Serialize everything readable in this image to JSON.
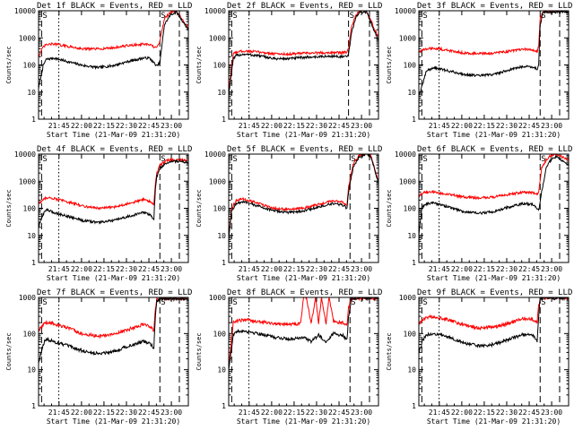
{
  "figure": {
    "ylabel": "Counts/sec",
    "xlabel": "Start Time (21-Mar-09 21:31:20)",
    "y_ticks": [
      {
        "value": 1,
        "label": "1"
      },
      {
        "value": 10,
        "label": "10"
      },
      {
        "value": 100,
        "label": "100"
      },
      {
        "value": 1000,
        "label": "1000"
      },
      {
        "value": 10000,
        "label": "10000"
      }
    ],
    "x_ticks": [
      {
        "minutes": 13.67,
        "label": "21:45"
      },
      {
        "minutes": 28.67,
        "label": "22:00"
      },
      {
        "minutes": 43.67,
        "label": "22:15"
      },
      {
        "minutes": 58.67,
        "label": "22:30"
      },
      {
        "minutes": 73.67,
        "label": "22:45"
      },
      {
        "minutes": 88.67,
        "label": "23:00"
      }
    ],
    "x_range_minutes": [
      0,
      100
    ],
    "y_range": [
      1,
      10000
    ],
    "colors": {
      "events": "#000000",
      "lld": "#ff0000",
      "axis": "#000000"
    }
  },
  "chart_data": [
    {
      "type": "line",
      "detector": "1f",
      "title": "Det 1f BLACK = Events, RED = LLD",
      "title_display": "Det 1f  BLACK = Events, RED = LLD",
      "ylabel": "Counts/sec",
      "xlabel": "Start Time (21-Mar-09 21:31:20)",
      "yscale": "log",
      "ylim": [
        1,
        10000
      ],
      "t_start_minutes": 0,
      "t_end_minutes": 100,
      "dashed_markers_minutes": [
        2,
        81,
        94
      ],
      "dotted_marker_minutes": 13.5,
      "series": [
        {
          "name": "Events",
          "color": "#000000",
          "x": [
            0,
            3,
            5,
            10,
            20,
            30,
            40,
            50,
            60,
            70,
            74,
            77,
            79,
            81,
            84,
            88,
            92,
            100
          ],
          "y": [
            14,
            90,
            160,
            180,
            130,
            95,
            80,
            95,
            135,
            180,
            180,
            120,
            90,
            120,
            3000,
            7000,
            9000,
            2000
          ]
        },
        {
          "name": "LLD",
          "color": "#ff0000",
          "x": [
            0,
            3,
            5,
            10,
            20,
            30,
            40,
            50,
            60,
            70,
            74,
            77,
            79,
            81,
            84,
            88,
            92,
            100
          ],
          "y": [
            200,
            450,
            550,
            600,
            480,
            390,
            390,
            430,
            520,
            580,
            560,
            460,
            420,
            800,
            5000,
            9000,
            10000,
            2200
          ]
        }
      ]
    },
    {
      "type": "line",
      "detector": "2f",
      "title": "Det 2f BLACK = Events, RED = LLD",
      "title_display": "Det 2f  BLACK = Events, RED = LLD",
      "ylabel": "Counts/sec",
      "xlabel": "Start Time (21-Mar-09 21:31:20)",
      "yscale": "log",
      "ylim": [
        1,
        10000
      ],
      "t_start_minutes": 0,
      "t_end_minutes": 100,
      "dashed_markers_minutes": [
        2,
        80,
        94
      ],
      "dotted_marker_minutes": 13.5,
      "series": [
        {
          "name": "Events",
          "color": "#000000",
          "x": [
            0,
            3,
            5,
            10,
            20,
            30,
            40,
            50,
            60,
            70,
            76,
            79,
            80,
            82,
            85,
            88,
            92,
            100
          ],
          "y": [
            8,
            160,
            220,
            250,
            220,
            170,
            170,
            190,
            200,
            210,
            200,
            200,
            250,
            1500,
            6000,
            9000,
            9000,
            800
          ]
        },
        {
          "name": "LLD",
          "color": "#ff0000",
          "x": [
            0,
            3,
            5,
            10,
            20,
            30,
            40,
            50,
            60,
            70,
            76,
            79,
            80,
            82,
            85,
            88,
            92,
            100
          ],
          "y": [
            10,
            250,
            300,
            330,
            300,
            260,
            250,
            270,
            280,
            290,
            280,
            300,
            400,
            2500,
            7000,
            10000,
            10000,
            1000
          ]
        }
      ]
    },
    {
      "type": "line",
      "detector": "3f",
      "title": "Det 3f BLACK = Events, RED = LLD",
      "title_display": "Det 3f  BLACK = Events, RED = LLD",
      "ylabel": "Counts/sec",
      "xlabel": "Start Time (21-Mar-09 21:31:20)",
      "yscale": "log",
      "ylim": [
        1,
        10000
      ],
      "t_start_minutes": 0,
      "t_end_minutes": 100,
      "dashed_markers_minutes": [
        2,
        81,
        94
      ],
      "dotted_marker_minutes": 13.5,
      "series": [
        {
          "name": "Events",
          "color": "#000000",
          "x": [
            0,
            2,
            5,
            10,
            20,
            30,
            40,
            50,
            60,
            70,
            76,
            79,
            80,
            81,
            83,
            86,
            92,
            100
          ],
          "y": [
            8,
            15,
            60,
            80,
            60,
            45,
            40,
            45,
            65,
            90,
            85,
            70,
            100,
            3000,
            9000,
            9000,
            9000,
            9000
          ]
        },
        {
          "name": "LLD",
          "color": "#ff0000",
          "x": [
            0,
            2,
            5,
            10,
            20,
            30,
            40,
            50,
            60,
            70,
            76,
            79,
            80,
            81,
            83,
            86,
            92,
            100
          ],
          "y": [
            300,
            350,
            380,
            420,
            340,
            280,
            260,
            270,
            320,
            380,
            360,
            300,
            500,
            5000,
            9500,
            10000,
            10000,
            10000
          ]
        }
      ]
    },
    {
      "type": "line",
      "detector": "4f",
      "title": "Det 4f BLACK = Events, RED = LLD",
      "title_display": "Det 4f  BLACK = Events, RED = LLD",
      "ylabel": "Counts/sec",
      "xlabel": "Start Time (21-Mar-09 21:31:20)",
      "yscale": "log",
      "ylim": [
        1,
        10000
      ],
      "t_start_minutes": 0,
      "t_end_minutes": 100,
      "dashed_markers_minutes": [
        2,
        81,
        94
      ],
      "dotted_marker_minutes": 13.5,
      "series": [
        {
          "name": "Events",
          "color": "#000000",
          "x": [
            0,
            3,
            5,
            10,
            20,
            30,
            40,
            50,
            60,
            70,
            74,
            77,
            78,
            79,
            81,
            86,
            92,
            100
          ],
          "y": [
            20,
            60,
            90,
            70,
            50,
            35,
            30,
            35,
            50,
            70,
            60,
            40,
            500,
            1500,
            3000,
            5000,
            5500,
            5000
          ]
        },
        {
          "name": "LLD",
          "color": "#ff0000",
          "x": [
            0,
            3,
            5,
            10,
            20,
            30,
            40,
            50,
            60,
            70,
            74,
            77,
            78,
            79,
            81,
            86,
            92,
            100
          ],
          "y": [
            150,
            200,
            250,
            230,
            170,
            120,
            100,
            110,
            150,
            210,
            180,
            140,
            800,
            2000,
            4000,
            6000,
            6000,
            6000
          ]
        }
      ]
    },
    {
      "type": "line",
      "detector": "5f",
      "title": "Det 5f BLACK = Events, RED = LLD",
      "title_display": "Det 5f  BLACK = Events, RED = LLD",
      "ylabel": "Counts/sec",
      "xlabel": "Start Time (21-Mar-09 21:31:20)",
      "yscale": "log",
      "ylim": [
        1,
        10000
      ],
      "t_start_minutes": 0,
      "t_end_minutes": 100,
      "dashed_markers_minutes": [
        2,
        81,
        94
      ],
      "dotted_marker_minutes": 13.5,
      "series": [
        {
          "name": "Events",
          "color": "#000000",
          "x": [
            0,
            2,
            5,
            10,
            20,
            30,
            40,
            50,
            60,
            70,
            76,
            79,
            80,
            83,
            87,
            92,
            95,
            100
          ],
          "y": [
            9,
            80,
            150,
            170,
            120,
            80,
            70,
            80,
            110,
            150,
            130,
            100,
            400,
            3000,
            8000,
            10000,
            8000,
            800
          ]
        },
        {
          "name": "LLD",
          "color": "#ff0000",
          "x": [
            0,
            2,
            5,
            10,
            20,
            30,
            40,
            50,
            60,
            70,
            76,
            79,
            80,
            83,
            87,
            92,
            95,
            100
          ],
          "y": [
            10,
            100,
            200,
            220,
            150,
            100,
            90,
            100,
            140,
            190,
            170,
            130,
            600,
            4000,
            9000,
            10500,
            9000,
            900
          ]
        }
      ]
    },
    {
      "type": "line",
      "detector": "6f",
      "title": "Det 6f BLACK = Events, RED = LLD",
      "title_display": "Det 6f  BLACK = Events, RED = LLD",
      "ylabel": "Counts/sec",
      "xlabel": "Start Time (21-Mar-09 21:31:20)",
      "yscale": "log",
      "ylim": [
        1,
        10000
      ],
      "t_start_minutes": 0,
      "t_end_minutes": 100,
      "dashed_markers_minutes": [
        2,
        81,
        94
      ],
      "dotted_marker_minutes": 13.5,
      "series": [
        {
          "name": "Events",
          "color": "#000000",
          "x": [
            0,
            2,
            4,
            10,
            20,
            30,
            40,
            50,
            60,
            70,
            76,
            79,
            80,
            82,
            85,
            88,
            92,
            100
          ],
          "y": [
            10,
            100,
            140,
            160,
            110,
            75,
            65,
            75,
            110,
            150,
            140,
            100,
            80,
            400,
            3000,
            6000,
            8000,
            4000
          ]
        },
        {
          "name": "LLD",
          "color": "#ff0000",
          "x": [
            0,
            2,
            4,
            10,
            20,
            30,
            40,
            50,
            60,
            70,
            76,
            79,
            80,
            82,
            85,
            88,
            92,
            100
          ],
          "y": [
            280,
            350,
            380,
            400,
            320,
            260,
            240,
            260,
            320,
            400,
            380,
            320,
            400,
            3000,
            6000,
            9000,
            10000,
            6000
          ]
        }
      ]
    },
    {
      "type": "line",
      "detector": "7f",
      "title": "Det 7f BLACK = Events, RED = LLD",
      "title_display": "Det 7f  BLACK = Events, RED = LLD",
      "ylabel": "Counts/sec",
      "xlabel": "Start Time (21-Mar-09 21:31:20)",
      "yscale": "log",
      "ylim": [
        1,
        1000
      ],
      "t_start_minutes": 0,
      "t_end_minutes": 100,
      "dashed_markers_minutes": [
        2,
        81,
        94
      ],
      "dotted_marker_minutes": 13.5,
      "series": [
        {
          "name": "Events",
          "color": "#000000",
          "x": [
            0,
            3,
            5,
            10,
            20,
            30,
            40,
            50,
            60,
            70,
            74,
            77,
            78,
            79,
            81,
            86,
            92,
            100
          ],
          "y": [
            15,
            50,
            70,
            60,
            45,
            32,
            28,
            32,
            45,
            60,
            55,
            40,
            300,
            800,
            900,
            900,
            900,
            900
          ]
        },
        {
          "name": "LLD",
          "color": "#ff0000",
          "x": [
            0,
            3,
            5,
            10,
            20,
            30,
            40,
            50,
            60,
            70,
            74,
            77,
            78,
            79,
            81,
            86,
            92,
            100
          ],
          "y": [
            120,
            170,
            200,
            190,
            140,
            95,
            85,
            95,
            130,
            180,
            160,
            120,
            500,
            900,
            950,
            950,
            950,
            950
          ]
        }
      ]
    },
    {
      "type": "line",
      "detector": "8f",
      "title": "Det 8f BLACK = Events, RED = LLD",
      "title_display": "Det 8f  BLACK = Events, RED = LLD",
      "ylabel": "Counts/sec",
      "xlabel": "Start Time (21-Mar-09 21:31:20)",
      "yscale": "log",
      "ylim": [
        1,
        1000
      ],
      "t_start_minutes": 0,
      "t_end_minutes": 100,
      "dashed_markers_minutes": [
        2,
        81,
        94
      ],
      "dotted_marker_minutes": 13.5,
      "series": [
        {
          "name": "Events",
          "color": "#000000",
          "x": [
            0,
            3,
            5,
            10,
            20,
            30,
            40,
            50,
            55,
            60,
            65,
            70,
            76,
            79,
            80,
            82,
            88,
            100
          ],
          "y": [
            10,
            90,
            110,
            120,
            100,
            80,
            70,
            80,
            60,
            90,
            60,
            100,
            90,
            70,
            300,
            950,
            950,
            950
          ]
        },
        {
          "name": "LLD",
          "color": "#ff0000",
          "x": [
            0,
            3,
            5,
            10,
            20,
            30,
            40,
            48,
            50,
            52,
            55,
            58,
            60,
            62,
            65,
            67,
            70,
            76,
            79,
            80,
            82,
            88,
            100
          ],
          "y": [
            12,
            200,
            220,
            240,
            220,
            190,
            180,
            190,
            1000,
            1000,
            180,
            1000,
            200,
            1000,
            190,
            1000,
            220,
            200,
            180,
            500,
            950,
            950,
            950
          ]
        }
      ]
    },
    {
      "type": "line",
      "detector": "9f",
      "title": "Det 9f BLACK = Events, RED = LLD",
      "title_display": "Det 9f  BLACK = Events, RED = LLD",
      "ylabel": "Counts/sec",
      "xlabel": "Start Time (21-Mar-09 21:31:20)",
      "yscale": "log",
      "ylim": [
        1,
        1000
      ],
      "t_start_minutes": 0,
      "t_end_minutes": 100,
      "dashed_markers_minutes": [
        2,
        81,
        94
      ],
      "dotted_marker_minutes": 13.5,
      "series": [
        {
          "name": "Events",
          "color": "#000000",
          "x": [
            0,
            3,
            5,
            10,
            20,
            30,
            40,
            50,
            60,
            70,
            76,
            79,
            80,
            81,
            83,
            88,
            92,
            100
          ],
          "y": [
            30,
            70,
            90,
            100,
            80,
            55,
            45,
            50,
            70,
            95,
            90,
            60,
            300,
            900,
            950,
            950,
            950,
            950
          ]
        },
        {
          "name": "LLD",
          "color": "#ff0000",
          "x": [
            0,
            3,
            5,
            10,
            20,
            30,
            40,
            50,
            60,
            70,
            76,
            79,
            80,
            81,
            83,
            88,
            92,
            100
          ],
          "y": [
            180,
            240,
            280,
            300,
            240,
            170,
            140,
            150,
            190,
            260,
            250,
            200,
            600,
            950,
            980,
            980,
            980,
            980
          ]
        }
      ]
    }
  ]
}
